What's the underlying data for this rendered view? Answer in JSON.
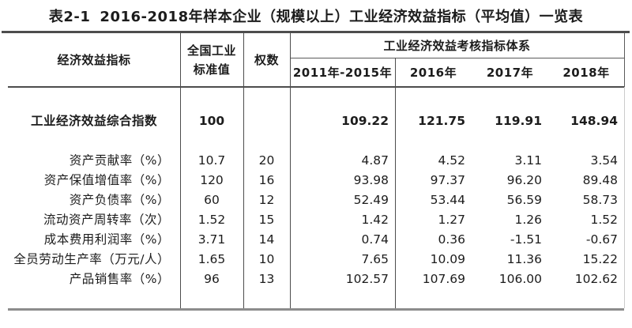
{
  "title": {
    "tag": "表2-1",
    "text": "2016-2018年样本企业（规模以上）工业经济效益指标（平均值）一览表"
  },
  "header": {
    "indicator": "经济效益指标",
    "standard_line1": "全国工业",
    "standard_line2": "标准值",
    "weight": "权数",
    "span": "工业经济效益考核指标体系",
    "years": [
      "2011年-2015年",
      "2016年",
      "2017年",
      "2018年"
    ]
  },
  "rows": [
    {
      "label": "工业经济效益综合指数",
      "std": "100",
      "weight": "",
      "values": [
        "109.22",
        "121.75",
        "119.91",
        "148.94"
      ],
      "bold": true
    },
    {
      "label": "资产贡献率（%）",
      "std": "10.7",
      "weight": "20",
      "values": [
        "4.87",
        "4.52",
        "3.11",
        "3.54"
      ]
    },
    {
      "label": "资产保值增值率（%）",
      "std": "120",
      "weight": "16",
      "values": [
        "93.98",
        "97.37",
        "96.20",
        "89.48"
      ]
    },
    {
      "label": "资产负债率（%）",
      "std": "60",
      "weight": "12",
      "values": [
        "52.49",
        "53.44",
        "56.59",
        "58.73"
      ]
    },
    {
      "label": "流动资产周转率（次）",
      "std": "1.52",
      "weight": "15",
      "values": [
        "1.42",
        "1.27",
        "1.26",
        "1.52"
      ]
    },
    {
      "label": "成本费用利润率（%）",
      "std": "3.71",
      "weight": "14",
      "values": [
        "0.74",
        "0.36",
        "-1.51",
        "-0.67"
      ]
    },
    {
      "label": "全员劳动生产率（万元/人）",
      "std": "1.65",
      "weight": "10",
      "values": [
        "7.65",
        "10.09",
        "11.36",
        "15.22"
      ]
    },
    {
      "label": "产品销售率（%）",
      "std": "96",
      "weight": "13",
      "values": [
        "102.57",
        "107.69",
        "106.00",
        "102.62"
      ]
    }
  ],
  "colors": {
    "text": "#1c1c1c",
    "rule_dark": "#4d4d4d",
    "rule_bottom_gray": "#8c8c8c",
    "background": "#ffffff"
  }
}
